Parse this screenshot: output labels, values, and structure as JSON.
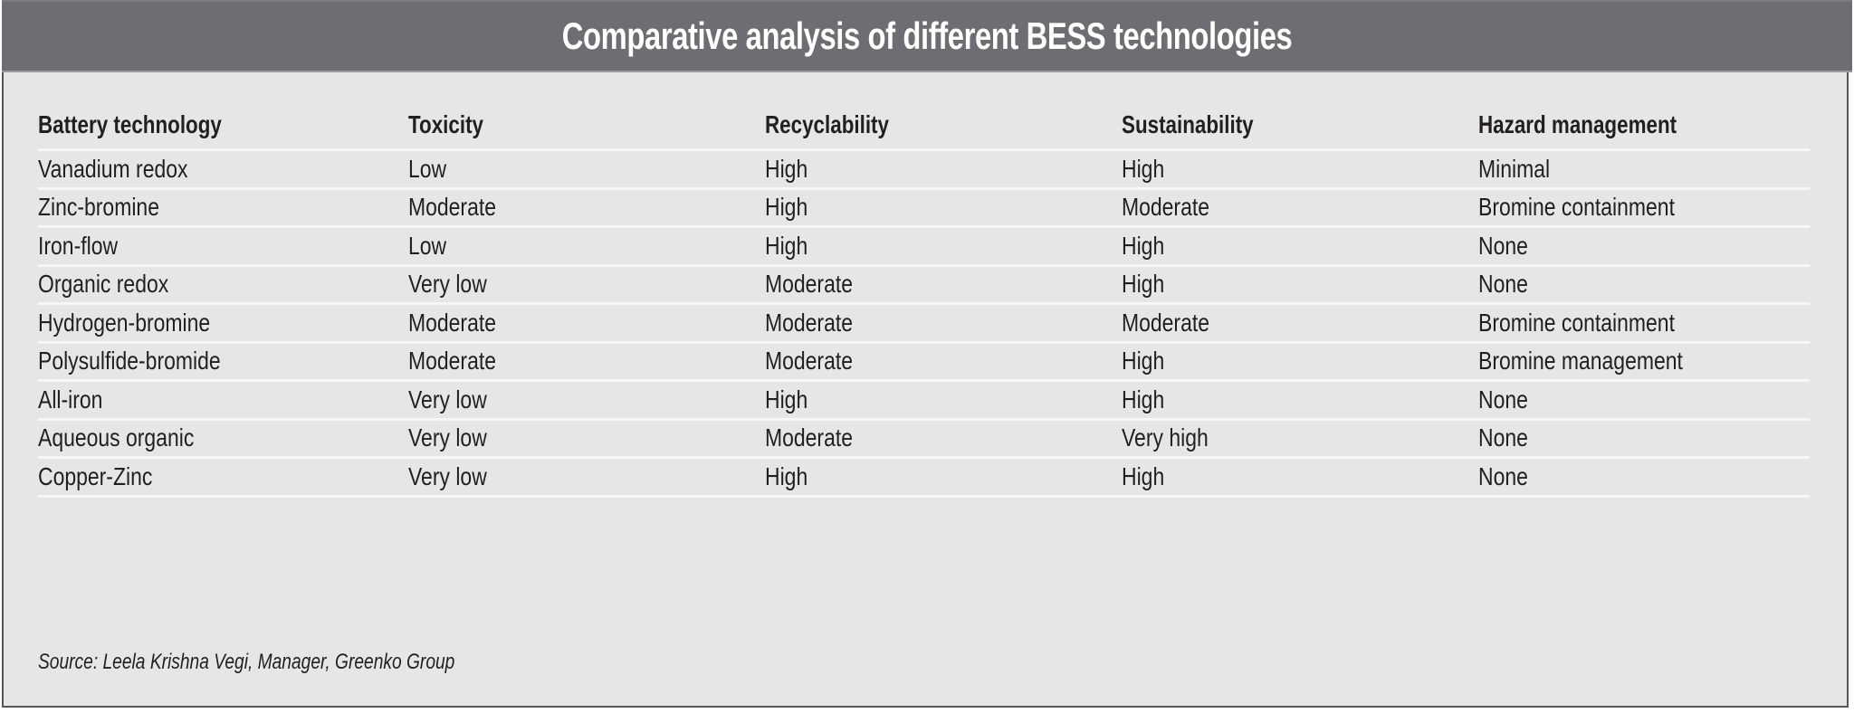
{
  "title": "Comparative analysis of different BESS technologies",
  "table": {
    "headers": [
      "Battery technology",
      "Toxicity",
      "Recyclability",
      "Sustainability",
      "Hazard management"
    ],
    "rows": [
      [
        "Vanadium redox",
        "Low",
        "High",
        "High",
        "Minimal"
      ],
      [
        "Zinc-bromine",
        "Moderate",
        "High",
        "Moderate",
        "Bromine containment"
      ],
      [
        "Iron-flow",
        "Low",
        "High",
        "High",
        "None"
      ],
      [
        "Organic redox",
        "Very low",
        "Moderate",
        "High",
        "None"
      ],
      [
        "Hydrogen-bromine",
        "Moderate",
        "Moderate",
        "Moderate",
        "Bromine containment"
      ],
      [
        "Polysulfide-bromide",
        "Moderate",
        "Moderate",
        "High",
        "Bromine management"
      ],
      [
        "All-iron",
        "Very low",
        "High",
        "High",
        "None"
      ],
      [
        "Aqueous organic",
        "Very low",
        "Moderate",
        "Very high",
        "None"
      ],
      [
        "Copper-Zinc",
        "Very low",
        "High",
        "High",
        "None"
      ]
    ]
  },
  "source": "Source: Leela Krishna Vegi, Manager, Greenko Group",
  "colors": {
    "title_bar": "#6d6e71",
    "title_text": "#ffffff",
    "background": "#e6e6e8",
    "text": "#231f20",
    "divider": "#f7f7f8",
    "border": "#555658"
  }
}
